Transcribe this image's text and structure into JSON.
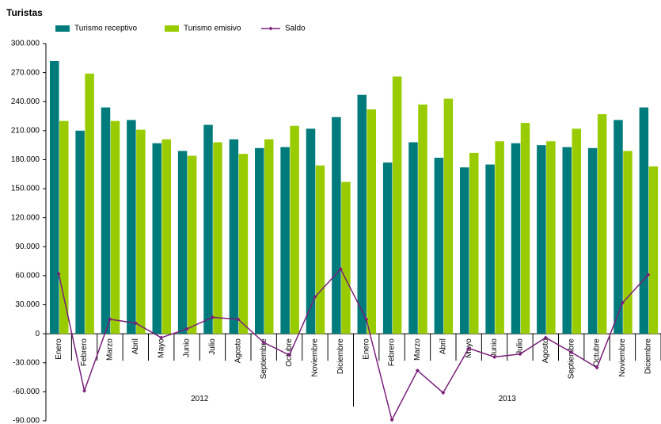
{
  "chart_data": {
    "type": "bar",
    "title": "Turistas",
    "categories": [
      "Enero",
      "Febrero",
      "Marzo",
      "Abril",
      "Mayo",
      "Junio",
      "Julio",
      "Agosto",
      "Septiembre",
      "Octubre",
      "Noviembre",
      "Diciembre",
      "Enero",
      "Febrero",
      "Marzo",
      "Abril",
      "Mayo",
      "Junio",
      "Julio",
      "Agosto",
      "Septiembre",
      "Octubre",
      "Noviembre",
      "Diciembre"
    ],
    "x_groups": [
      "2012",
      "2013"
    ],
    "series": [
      {
        "name": "Turismo receptivo",
        "type": "bar",
        "color": "#007b7b",
        "values": [
          282000,
          210000,
          234000,
          221000,
          197000,
          189000,
          216000,
          201000,
          192000,
          193000,
          212000,
          224000,
          247000,
          177000,
          198000,
          182000,
          172000,
          175000,
          197000,
          195000,
          193000,
          192000,
          221000,
          234000
        ]
      },
      {
        "name": "Turismo emisivo",
        "type": "bar",
        "color": "#99cc00",
        "values": [
          220000,
          269000,
          220000,
          211000,
          201000,
          184000,
          198000,
          186000,
          201000,
          215000,
          174000,
          157000,
          232000,
          266000,
          237000,
          243000,
          187000,
          199000,
          218000,
          199000,
          212000,
          227000,
          189000,
          173000
        ]
      },
      {
        "name": "Saldo",
        "type": "line",
        "color": "#7b1f7b",
        "values": [
          62000,
          -59000,
          15000,
          11000,
          -4000,
          5000,
          17000,
          15000,
          -9000,
          -22000,
          38000,
          67000,
          15000,
          -89000,
          -38000,
          -61000,
          -15000,
          -24000,
          -21000,
          -4000,
          -19000,
          -35000,
          32000,
          61000
        ]
      }
    ],
    "ylim": [
      -90000,
      300000
    ],
    "yticks": [
      {
        "value": -90000,
        "label": "-90.000"
      },
      {
        "value": -60000,
        "label": "-60.000"
      },
      {
        "value": -30000,
        "label": "-30.000"
      },
      0,
      {
        "value": 30000,
        "label": "30.000"
      },
      {
        "value": 60000,
        "label": "60.000"
      },
      {
        "value": 90000,
        "label": "90.000"
      },
      {
        "value": 120000,
        "label": "120.000"
      },
      {
        "value": 150000,
        "label": "150.000"
      },
      {
        "value": 180000,
        "label": "180.000"
      },
      {
        "value": 210000,
        "label": "210.000"
      },
      {
        "value": 240000,
        "label": "240.000"
      },
      {
        "value": 270000,
        "label": "270.000"
      },
      {
        "value": 300000,
        "label": "300.000"
      }
    ],
    "grid": false,
    "legend": "top"
  }
}
